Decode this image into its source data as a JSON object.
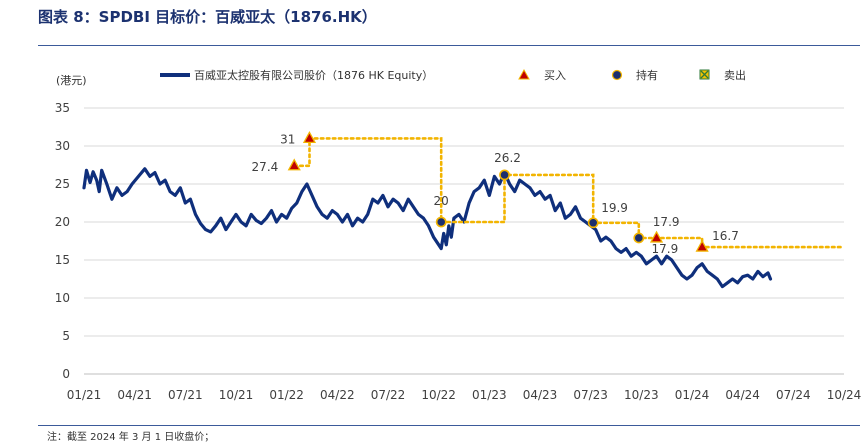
{
  "figure": {
    "title": "图表 8：SPDBI 目标价：百威亚太（1876.HK）",
    "footnote": "注：截至 2024 年 3 月 1 日收盘价；"
  },
  "chart_data": {
    "type": "line",
    "ylabel": "(港元)",
    "ylim": [
      0,
      35
    ],
    "yticks": [
      "0",
      "5",
      "10",
      "15",
      "20",
      "25",
      "30",
      "35"
    ],
    "xticks": [
      "01/21",
      "04/21",
      "07/21",
      "10/21",
      "01/22",
      "04/22",
      "07/22",
      "10/22",
      "01/23",
      "04/23",
      "07/23",
      "10/23",
      "01/24",
      "04/24",
      "07/24",
      "10/24"
    ],
    "grid": "horizontal",
    "legend_position": "top",
    "legend": {
      "series": "百威亚太控股有限公司股价（1876 HK Equity）",
      "buy": "买入",
      "hold": "持有",
      "sell": "卖出"
    },
    "colors": {
      "price": "#0f2f7c",
      "target": "#f2b400",
      "buy": "#c00000",
      "hold": "#1c2f6e"
    },
    "series": [
      {
        "name": "百威亚太控股有限公司股价（1876 HK Equity）",
        "x": [
          0,
          0.05,
          0.12,
          0.18,
          0.25,
          0.3,
          0.35,
          0.45,
          0.55,
          0.65,
          0.75,
          0.85,
          0.95,
          1.1,
          1.2,
          1.3,
          1.4,
          1.5,
          1.6,
          1.7,
          1.8,
          1.9,
          2.0,
          2.1,
          2.2,
          2.3,
          2.4,
          2.5,
          2.6,
          2.7,
          2.8,
          2.9,
          3.0,
          3.1,
          3.2,
          3.3,
          3.4,
          3.5,
          3.6,
          3.7,
          3.8,
          3.9,
          4.0,
          4.1,
          4.2,
          4.3,
          4.4,
          4.5,
          4.6,
          4.7,
          4.8,
          4.9,
          5.0,
          5.1,
          5.2,
          5.3,
          5.4,
          5.5,
          5.6,
          5.7,
          5.8,
          5.9,
          6.0,
          6.1,
          6.2,
          6.3,
          6.4,
          6.5,
          6.6,
          6.7,
          6.8,
          6.9,
          7.0,
          7.05,
          7.1,
          7.15,
          7.2,
          7.25,
          7.3,
          7.4,
          7.5,
          7.6,
          7.7,
          7.8,
          7.9,
          8.0,
          8.1,
          8.2,
          8.3,
          8.4,
          8.5,
          8.6,
          8.7,
          8.8,
          8.9,
          9.0,
          9.1,
          9.2,
          9.3,
          9.4,
          9.5,
          9.6,
          9.7,
          9.8,
          9.9,
          10.0,
          10.1,
          10.2,
          10.3,
          10.4,
          10.5,
          10.6,
          10.7,
          10.8,
          10.9,
          11.0,
          11.1,
          11.2,
          11.3,
          11.4,
          11.5,
          11.6,
          11.7,
          11.8,
          11.9,
          12.0,
          12.1,
          12.2,
          12.3,
          12.4,
          12.5,
          12.6,
          12.7,
          12.8,
          12.9,
          13.0,
          13.1,
          13.2,
          13.3,
          13.4,
          13.5,
          13.55
        ],
        "y": [
          24.5,
          26.8,
          25.2,
          26.6,
          25.5,
          24.0,
          26.8,
          25.0,
          23.0,
          24.5,
          23.5,
          24.0,
          25.0,
          26.2,
          27.0,
          26.0,
          26.5,
          25.0,
          25.5,
          24.0,
          23.5,
          24.5,
          22.5,
          23.0,
          21.0,
          19.8,
          19.0,
          18.7,
          19.5,
          20.5,
          19.0,
          20.0,
          21.0,
          20.0,
          19.5,
          21.0,
          20.2,
          19.8,
          20.5,
          21.5,
          20.0,
          21.0,
          20.5,
          21.8,
          22.5,
          24.0,
          25.0,
          23.5,
          22.0,
          21.0,
          20.5,
          21.5,
          21.0,
          20.0,
          21.0,
          19.5,
          20.5,
          20.0,
          21.0,
          23.0,
          22.5,
          23.5,
          22.0,
          23.0,
          22.5,
          21.5,
          23.0,
          22.0,
          21.0,
          20.5,
          19.5,
          18.0,
          17.0,
          16.5,
          18.5,
          17.0,
          19.5,
          18.0,
          20.5,
          21.0,
          20.0,
          22.5,
          24.0,
          24.5,
          25.5,
          23.5,
          26.0,
          25.0,
          26.5,
          25.0,
          24.0,
          25.5,
          25.0,
          24.5,
          23.5,
          24.0,
          23.0,
          23.5,
          21.5,
          22.5,
          20.5,
          21.0,
          22.0,
          20.5,
          20.0,
          19.5,
          19.0,
          17.5,
          18.0,
          17.5,
          16.5,
          16.0,
          16.5,
          15.5,
          16.0,
          15.5,
          14.5,
          15.0,
          15.5,
          14.5,
          15.5,
          15.0,
          14.0,
          13.0,
          12.5,
          13.0,
          14.0,
          14.5,
          13.5,
          13.0,
          12.5,
          11.5,
          12.0,
          12.5,
          12.0,
          12.8,
          13.0,
          12.5,
          13.5,
          12.8,
          13.3,
          12.5
        ]
      },
      {
        "name": "目标价",
        "x": [
          4.15,
          4.45,
          4.45,
          7.05,
          7.05,
          8.3,
          8.3,
          10.05,
          10.05,
          10.95,
          10.95,
          11.3,
          11.3,
          12.2,
          12.2,
          15.0
        ],
        "y": [
          27.4,
          27.4,
          31,
          31,
          20,
          20,
          26.2,
          26.2,
          19.9,
          19.9,
          17.9,
          17.9,
          17.9,
          17.9,
          16.7,
          16.7
        ]
      }
    ],
    "ratings": [
      {
        "type": "buy",
        "x": 4.15,
        "y": 27.4,
        "label": "27.4"
      },
      {
        "type": "buy",
        "x": 4.45,
        "y": 31,
        "label": "31"
      },
      {
        "type": "hold",
        "x": 7.05,
        "y": 20,
        "label": "20"
      },
      {
        "type": "hold",
        "x": 8.3,
        "y": 26.2,
        "label": "26.2"
      },
      {
        "type": "hold",
        "x": 10.05,
        "y": 19.9,
        "label": "19.9"
      },
      {
        "type": "hold",
        "x": 10.95,
        "y": 17.9,
        "label": "17.9"
      },
      {
        "type": "buy",
        "x": 11.3,
        "y": 17.9,
        "label": "17.9"
      },
      {
        "type": "buy",
        "x": 12.2,
        "y": 16.7,
        "label": "16.7"
      }
    ]
  }
}
